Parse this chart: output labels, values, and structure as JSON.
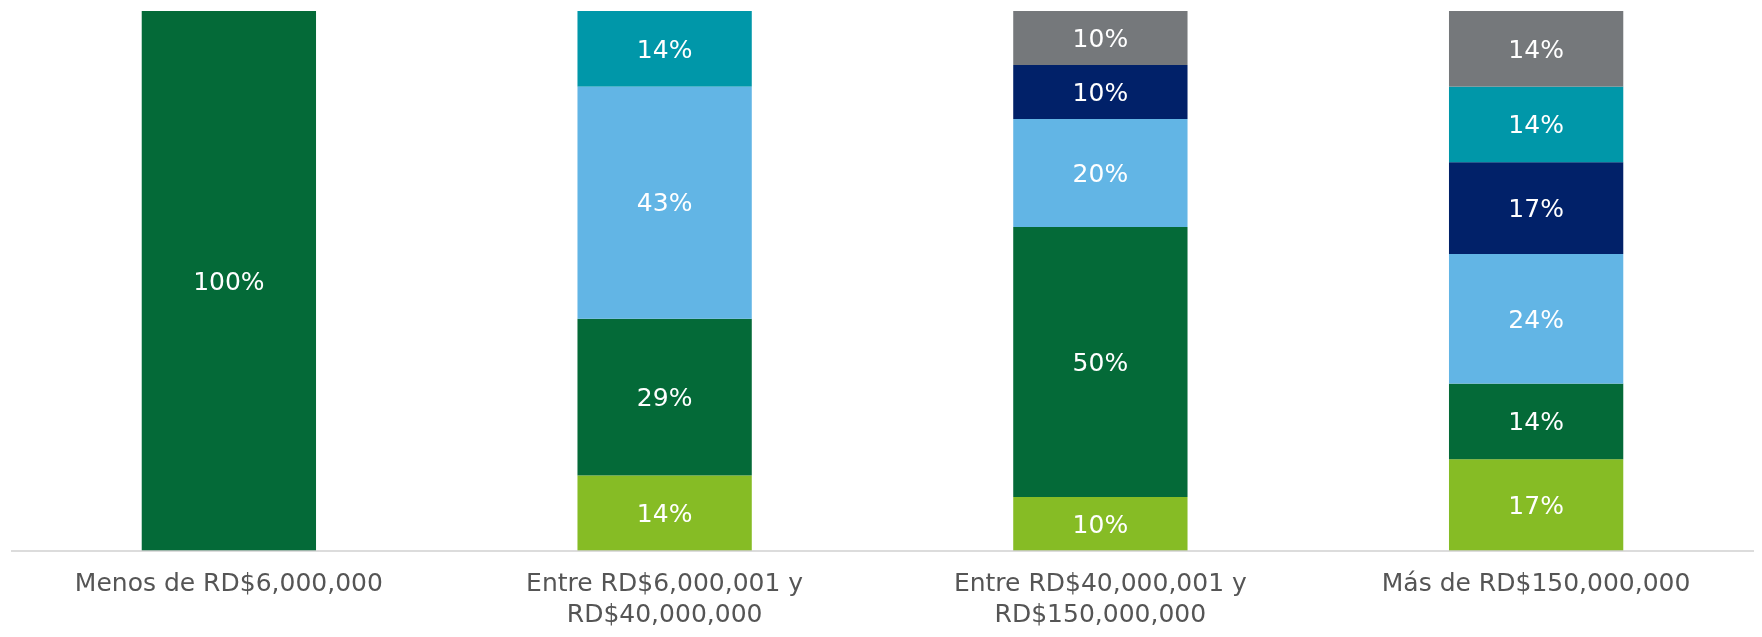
{
  "chart_data": {
    "type": "bar",
    "stacked": true,
    "categories": [
      "Menos de RD$6,000,000",
      "Entre RD$6,000,001 y RD$40,000,000",
      "Entre RD$40,000,001 y RD$150,000,000",
      "Más de RD$150,000,000"
    ],
    "series": [
      {
        "color": "#86bc25",
        "values": [
          null,
          14,
          10,
          17
        ],
        "value_labels": [
          null,
          "14%",
          "10%",
          "17%"
        ]
      },
      {
        "color": "#046a38",
        "values": [
          100,
          29,
          50,
          14
        ],
        "value_labels": [
          "100%",
          "29%",
          "50%",
          "14%"
        ]
      },
      {
        "color": "#62b5e5",
        "values": [
          null,
          43,
          20,
          24
        ],
        "value_labels": [
          null,
          "43%",
          "20%",
          "24%"
        ]
      },
      {
        "color": "#012169",
        "values": [
          null,
          null,
          10,
          17
        ],
        "value_labels": [
          null,
          null,
          "10%",
          "17%"
        ]
      },
      {
        "color": "#0097a9",
        "values": [
          null,
          14,
          null,
          14
        ],
        "value_labels": [
          null,
          "14%",
          null,
          "14%"
        ]
      },
      {
        "color": "#75787b",
        "values": [
          null,
          null,
          10,
          14
        ],
        "value_labels": [
          null,
          null,
          "10%",
          "14%"
        ]
      }
    ]
  }
}
